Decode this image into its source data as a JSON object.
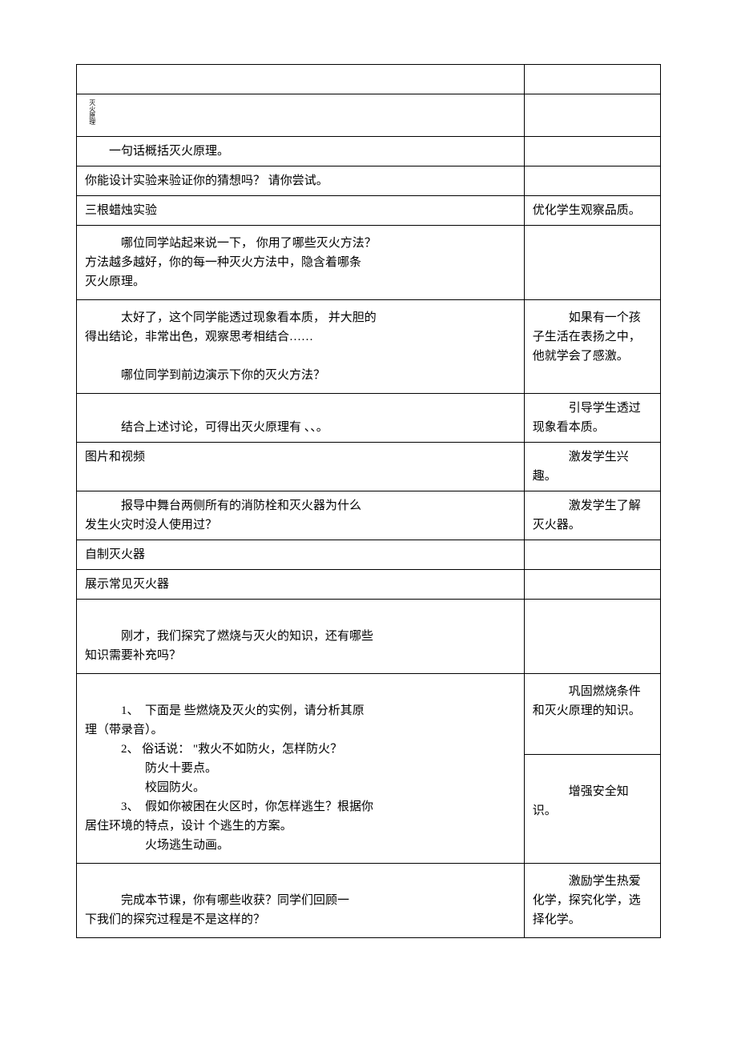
{
  "table": {
    "rows": [
      {
        "left": [
          ""
        ],
        "right": [
          ""
        ],
        "class": "empty-row"
      },
      {
        "left_vertical": "灭火原理",
        "right": [
          ""
        ]
      },
      {
        "left": [
          "　　一句话概括灭火原理。"
        ],
        "right": [
          ""
        ]
      },
      {
        "left": [
          "你能设计实验来验证你的猜想吗？ 请你尝试。"
        ],
        "right": [
          ""
        ]
      },
      {
        "left": [
          "三根蜡烛实验"
        ],
        "right": [
          "优化学生观察品质。"
        ]
      },
      {
        "left": [
          "　　　哪位同学站起来说一下， 你用了哪些灭火方法？",
          "方法越多越好，你的每一种灭火方法中，隐含着哪条",
          "灭火原理。"
        ],
        "right": [
          ""
        ],
        "class": "tall-row"
      },
      {
        "left": [
          "　　　太好了，这个同学能透过现象看本质， 并大胆的",
          "得出结论，非常出色，观察思考相结合……",
          "",
          "　　　哪位同学到前边演示下你的灭火方法？"
        ],
        "right": [
          "　　　如果有一个孩",
          "子生活在表扬之中，",
          "他就学会了感激。"
        ],
        "class": "tall-row"
      },
      {
        "left": [
          "",
          "　　　结合上述讨论，可得出灭火原理有 、、。"
        ],
        "right": [
          "　　　引导学生透过",
          "现象看本质。"
        ]
      },
      {
        "left": [
          "图片和视频"
        ],
        "right": [
          "　　　激发学生兴趣。"
        ]
      },
      {
        "left": [
          "　　　报导中舞台两侧所有的消防栓和灭火器为什么",
          "发生火灾时没人使用过？"
        ],
        "right": [
          "　　　激发学生了解",
          "灭火器。"
        ]
      },
      {
        "left": [
          "自制灭火器"
        ],
        "right": [
          ""
        ]
      },
      {
        "left": [
          "展示常见灭火器"
        ],
        "right": [
          ""
        ]
      },
      {
        "left": [
          "",
          "　　　刚才，我们探究了燃烧与灭火的知识，还有哪些",
          "知识需要补充吗？"
        ],
        "right": [
          ""
        ],
        "class": "tall-row"
      },
      {
        "left": [
          "",
          "　　　1、　下面是 些燃烧及灭火的实例，请分析其原",
          "理（带录音）。",
          "　　　2、 俗话说： \"救火不如防火，怎样防火？",
          "　　　　　防火十要点。",
          "　　　　　校园防火。",
          "　　　3、　假如你被困在火区时，你怎样逃生？根据你",
          "居住环境的特点，设计 个逃生的方案。",
          "　　　　　火场逃生动画。"
        ],
        "right_split": {
          "top": [
            "　　　巩固燃烧条件",
            "和灭火原理的知识。"
          ],
          "bottom": [
            "",
            "　　　增强安全知识。"
          ]
        },
        "class": "tall-row"
      },
      {
        "left": [
          "",
          "　　　完成本节课，你有哪些收获？同学们回顾一",
          "下我们的探究过程是不是这样的？"
        ],
        "right": [
          "　　　激励学生热爱",
          "化学，探究化学，选",
          "择化学。"
        ],
        "class": "tall-row"
      }
    ]
  },
  "styles": {
    "background_color": "#ffffff",
    "border_color": "#000000",
    "text_color": "#000000",
    "font_size": 15,
    "vertical_font_size": 8
  }
}
